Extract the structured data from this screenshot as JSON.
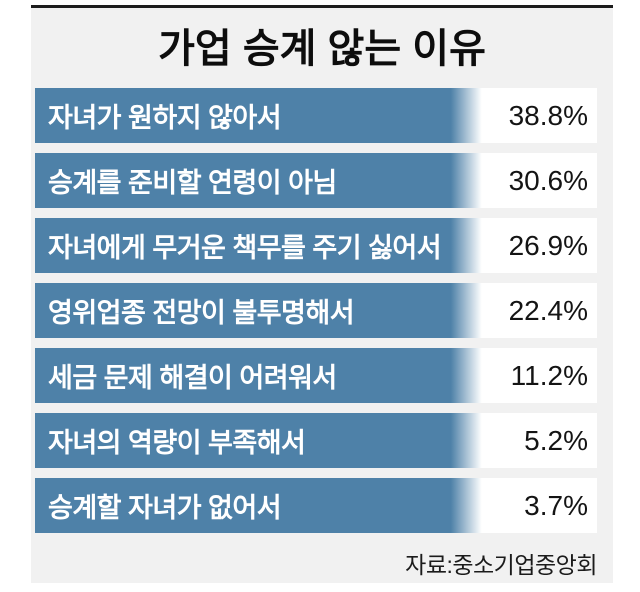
{
  "chart": {
    "title": "가업 승계 않는 이유",
    "source": "자료:중소기업중앙회",
    "rows": [
      {
        "label": "자녀가 원하지 않아서",
        "value": "38.8%"
      },
      {
        "label": "승계를 준비할 연령이 아님",
        "value": "30.6%"
      },
      {
        "label": "자녀에게 무거운 책무를 주기 싫어서",
        "value": "26.9%"
      },
      {
        "label": "영위업종 전망이 불투명해서",
        "value": "22.4%"
      },
      {
        "label": "세금 문제 해결이 어려워서",
        "value": "11.2%"
      },
      {
        "label": "자녀의 역량이 부족해서",
        "value": "5.2%"
      },
      {
        "label": "승계할 자녀가 없어서",
        "value": "3.7%"
      }
    ],
    "colors": {
      "bar": "#4e81a8",
      "panel_background": "#f1f1f1",
      "value_cell": "#ffffff",
      "top_rule": "#1c1c1c",
      "bar_text": "#ffffff",
      "value_text": "#141414"
    }
  },
  "chart_data": {
    "type": "bar",
    "orientation": "horizontal",
    "title": "가업 승계 않는 이유",
    "categories": [
      "자녀가 원하지 않아서",
      "승계를 준비할 연령이 아님",
      "자녀에게 무거운 책무를 주기 싫어서",
      "영위업종 전망이 불투명해서",
      "세금 문제 해결이 어려워서",
      "자녀의 역량이 부족해서",
      "승계할 자녀가 없어서"
    ],
    "values": [
      38.8,
      30.6,
      26.9,
      22.4,
      11.2,
      5.2,
      3.7
    ],
    "unit": "%",
    "source": "자료:중소기업중앙회",
    "layout": {
      "bars_uniform_length": true,
      "value_labels": "right",
      "grid": false,
      "legend": false,
      "bar_color": "#4e81a8"
    }
  }
}
